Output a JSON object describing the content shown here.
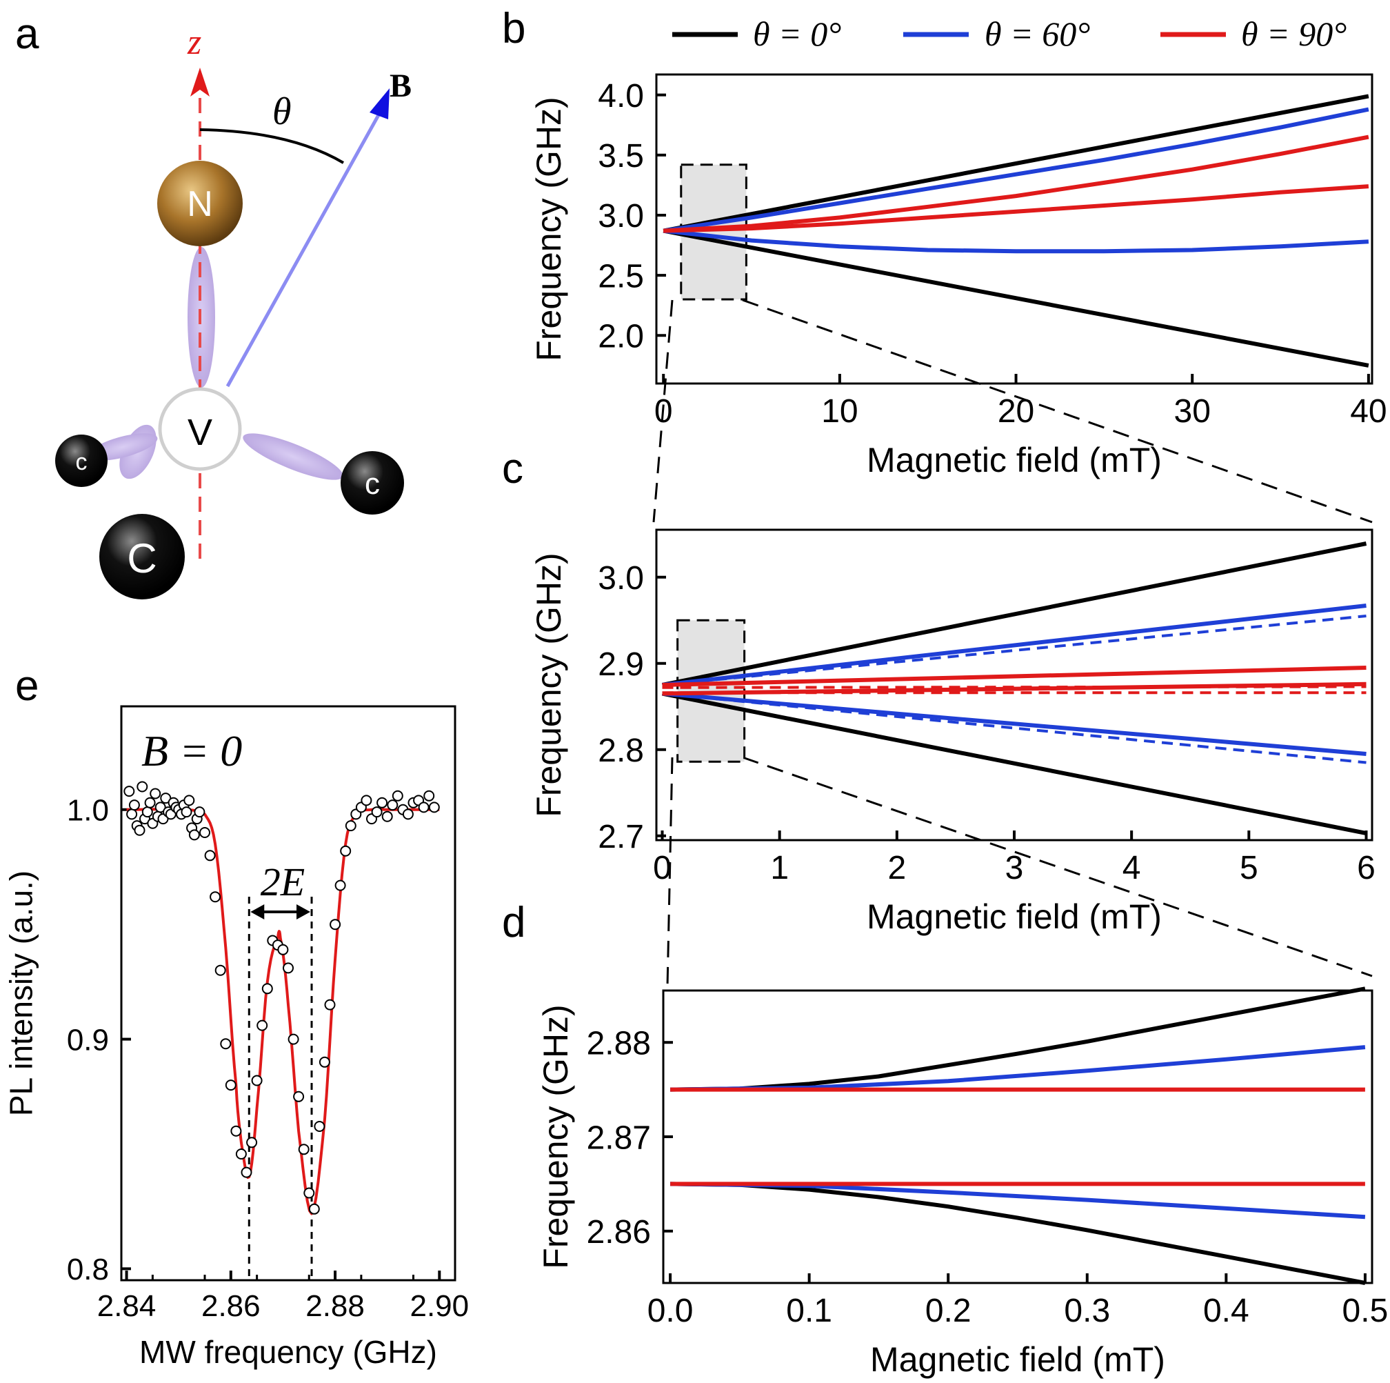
{
  "panel_letters": {
    "a": "a",
    "b": "b",
    "c": "c",
    "d": "d",
    "e": "e"
  },
  "legend": {
    "entries": [
      {
        "label": "θ = 0°",
        "color": "#000000"
      },
      {
        "label": "θ = 60°",
        "color": "#1f3fd6"
      },
      {
        "label": "θ = 90°",
        "color": "#e01a1a"
      }
    ]
  },
  "diagram": {
    "axis_label": "z",
    "field_label": "B",
    "angle_label": "θ",
    "nitrogen_label": "N",
    "vacancy_label": "V",
    "carbon_labels": [
      "c",
      "c",
      "C"
    ]
  },
  "colors": {
    "black": "#000000",
    "blue": "#1f3fd6",
    "red": "#e01a1a",
    "zoom_box": "#e3e3e3",
    "nitrogen": "#a8742a",
    "bond": "#b9a6e0"
  },
  "chart_data": [
    {
      "id": "b",
      "type": "line",
      "xlabel": "Magnetic field (mT)",
      "ylabel": "Frequency (GHz)",
      "xlim": [
        -0.4,
        40.2
      ],
      "ylim": [
        1.6,
        4.17
      ],
      "xticks": [
        0,
        10,
        20,
        30,
        40
      ],
      "xtick_labels": [
        "0",
        "10",
        "20",
        "30",
        "40"
      ],
      "yticks": [
        2.0,
        2.5,
        3.0,
        3.5,
        4.0
      ],
      "ytick_labels": [
        "2.0",
        "2.5",
        "3.0",
        "3.5",
        "4.0"
      ],
      "zoom_box": {
        "x": [
          1,
          4.7
        ],
        "y": [
          2.3,
          3.42
        ]
      },
      "series": [
        {
          "name": "θ = 0°",
          "color": "#000000",
          "x": [
            0,
            40
          ],
          "y_upper": [
            2.87,
            3.99
          ],
          "y_lower": [
            2.87,
            1.75
          ]
        },
        {
          "name": "θ = 60°",
          "color": "#1f3fd6",
          "x": [
            0,
            5,
            10,
            15,
            20,
            25,
            30,
            35,
            40
          ],
          "y_upper": [
            2.87,
            2.98,
            3.1,
            3.22,
            3.34,
            3.46,
            3.59,
            3.73,
            3.88
          ],
          "y_lower": [
            2.87,
            2.79,
            2.74,
            2.71,
            2.7,
            2.7,
            2.71,
            2.74,
            2.78
          ]
        },
        {
          "name": "θ = 90°",
          "color": "#e01a1a",
          "x": [
            0,
            5,
            10,
            15,
            20,
            25,
            30,
            35,
            40
          ],
          "y_upper": [
            2.87,
            2.91,
            2.98,
            3.07,
            3.16,
            3.27,
            3.38,
            3.51,
            3.65
          ],
          "y_lower": [
            2.87,
            2.89,
            2.93,
            2.98,
            3.03,
            3.08,
            3.13,
            3.19,
            3.24
          ]
        }
      ]
    },
    {
      "id": "c",
      "type": "line",
      "xlabel": "Magnetic field (mT)",
      "ylabel": "Frequency (GHz)",
      "xlim": [
        -0.05,
        6.05
      ],
      "ylim": [
        2.695,
        3.055
      ],
      "xticks": [
        0,
        1,
        2,
        3,
        4,
        5,
        6
      ],
      "xtick_labels": [
        "0",
        "1",
        "2",
        "3",
        "4",
        "5",
        "6"
      ],
      "yticks": [
        2.7,
        2.8,
        2.9,
        3.0
      ],
      "ytick_labels": [
        "2.7",
        "2.8",
        "2.9",
        "3.0"
      ],
      "zoom_box": {
        "x": [
          0.13,
          0.7
        ],
        "y": [
          2.786,
          2.95
        ]
      },
      "series": [
        {
          "name": "θ = 0°",
          "color": "#000000",
          "x": [
            0,
            6
          ],
          "y_upper": [
            2.875,
            3.039
          ],
          "y_lower": [
            2.865,
            2.703
          ]
        },
        {
          "name": "θ = 60°",
          "color": "#1f3fd6",
          "x": [
            0,
            6
          ],
          "y_upper": [
            2.875,
            2.967
          ],
          "y_lower": [
            2.865,
            2.795
          ],
          "dashed_upper": [
            2.875,
            2.955
          ],
          "dashed_lower": [
            2.865,
            2.785
          ]
        },
        {
          "name": "θ = 90°",
          "color": "#e01a1a",
          "x": [
            0,
            6
          ],
          "y_upper": [
            2.875,
            2.895
          ],
          "y_lower": [
            2.865,
            2.876
          ],
          "dashed_upper": [
            2.872,
            2.873
          ],
          "dashed_lower": [
            2.866,
            2.866
          ]
        }
      ]
    },
    {
      "id": "d",
      "type": "line",
      "xlabel": "Magnetic field (mT)",
      "ylabel": "Frequency (GHz)",
      "xlim": [
        -0.005,
        0.505
      ],
      "ylim": [
        2.8545,
        2.8855
      ],
      "xticks": [
        0.0,
        0.1,
        0.2,
        0.3,
        0.4,
        0.5
      ],
      "xtick_labels": [
        "0.0",
        "0.1",
        "0.2",
        "0.3",
        "0.4",
        "0.5"
      ],
      "yticks": [
        2.86,
        2.87,
        2.88
      ],
      "ytick_labels": [
        "2.86",
        "2.87",
        "2.88"
      ],
      "series": [
        {
          "name": "θ = 0°",
          "color": "#000000",
          "x": [
            0,
            0.05,
            0.1,
            0.15,
            0.2,
            0.25,
            0.3,
            0.35,
            0.4,
            0.45,
            0.5
          ],
          "y_upper": [
            2.875,
            2.8751,
            2.8756,
            2.8764,
            2.8776,
            2.8788,
            2.8801,
            2.8815,
            2.8829,
            2.8843,
            2.8857
          ],
          "y_lower": [
            2.865,
            2.8649,
            2.8644,
            2.8636,
            2.8626,
            2.8614,
            2.8601,
            2.8587,
            2.8573,
            2.8559,
            2.8545
          ]
        },
        {
          "name": "θ = 60°",
          "color": "#1f3fd6",
          "x": [
            0,
            0.1,
            0.2,
            0.3,
            0.4,
            0.5
          ],
          "y_upper": [
            2.875,
            2.8752,
            2.8759,
            2.877,
            2.8782,
            2.8795
          ],
          "y_lower": [
            2.865,
            2.8648,
            2.8641,
            2.8633,
            2.8624,
            2.8615
          ]
        },
        {
          "name": "θ = 90°",
          "color": "#e01a1a",
          "x": [
            0,
            0.5
          ],
          "y_upper": [
            2.875,
            2.875
          ],
          "y_lower": [
            2.865,
            2.865
          ]
        }
      ]
    },
    {
      "id": "e",
      "type": "scatter",
      "annotation": "B = 0",
      "splitting_label": "2E",
      "xlabel": "MW frequency (GHz)",
      "ylabel": "PL intensity (a.u.)",
      "xlim": [
        2.839,
        2.903
      ],
      "ylim": [
        0.795,
        1.045
      ],
      "xticks": [
        2.84,
        2.86,
        2.88,
        2.9
      ],
      "xtick_labels": [
        "2.84",
        "2.86",
        "2.88",
        "2.90"
      ],
      "yticks": [
        0.8,
        0.9,
        1.0
      ],
      "ytick_labels": [
        "0.8",
        "0.9",
        "1.0"
      ],
      "dip_centers": [
        2.8635,
        2.8755
      ],
      "fit": {
        "name": "fit",
        "color": "#e01a1a",
        "x": [
          2.84,
          2.85,
          2.855,
          2.857,
          2.859,
          2.861,
          2.862,
          2.8635,
          2.865,
          2.867,
          2.869,
          2.8695,
          2.871,
          2.873,
          2.8755,
          2.878,
          2.88,
          2.882,
          2.884,
          2.887,
          2.89,
          2.9
        ],
        "y": [
          1.0,
          1.0,
          0.998,
          0.985,
          0.94,
          0.88,
          0.855,
          0.84,
          0.87,
          0.925,
          0.944,
          0.944,
          0.915,
          0.86,
          0.824,
          0.865,
          0.935,
          0.985,
          0.998,
          1.0,
          1.0,
          1.0
        ]
      },
      "points": {
        "x": [
          2.8405,
          2.841,
          2.8415,
          2.842,
          2.8425,
          2.843,
          2.8435,
          2.844,
          2.8445,
          2.845,
          2.8455,
          2.846,
          2.8465,
          2.847,
          2.8475,
          2.848,
          2.8485,
          2.849,
          2.8495,
          2.85,
          2.8505,
          2.851,
          2.8515,
          2.852,
          2.8525,
          2.853,
          2.8535,
          2.854,
          2.855,
          2.856,
          2.857,
          2.858,
          2.859,
          2.86,
          2.861,
          2.862,
          2.863,
          2.864,
          2.865,
          2.866,
          2.867,
          2.868,
          2.869,
          2.87,
          2.871,
          2.872,
          2.873,
          2.874,
          2.875,
          2.876,
          2.877,
          2.878,
          2.879,
          2.88,
          2.881,
          2.882,
          2.883,
          2.884,
          2.885,
          2.886,
          2.887,
          2.888,
          2.889,
          2.89,
          2.891,
          2.892,
          2.893,
          2.894,
          2.895,
          2.896,
          2.897,
          2.898,
          2.899
        ],
        "y": [
          1.008,
          0.998,
          1.002,
          0.993,
          0.991,
          1.01,
          0.996,
          0.999,
          1.003,
          0.994,
          1.007,
          0.997,
          1.001,
          0.996,
          1.005,
          0.999,
          0.998,
          1.003,
          1.001,
          1.0,
          0.998,
          1.002,
          0.999,
          1.004,
          0.992,
          0.989,
          0.996,
          0.999,
          0.99,
          0.98,
          0.962,
          0.93,
          0.898,
          0.88,
          0.86,
          0.85,
          0.842,
          0.855,
          0.882,
          0.906,
          0.922,
          0.943,
          0.941,
          0.939,
          0.931,
          0.9,
          0.875,
          0.852,
          0.833,
          0.826,
          0.862,
          0.89,
          0.915,
          0.95,
          0.967,
          0.982,
          0.993,
          0.998,
          1.001,
          1.004,
          0.996,
          0.999,
          1.003,
          0.997,
          1.002,
          1.006,
          1.0,
          0.998,
          1.003,
          1.004,
          1.001,
          1.006,
          1.001
        ]
      }
    }
  ]
}
